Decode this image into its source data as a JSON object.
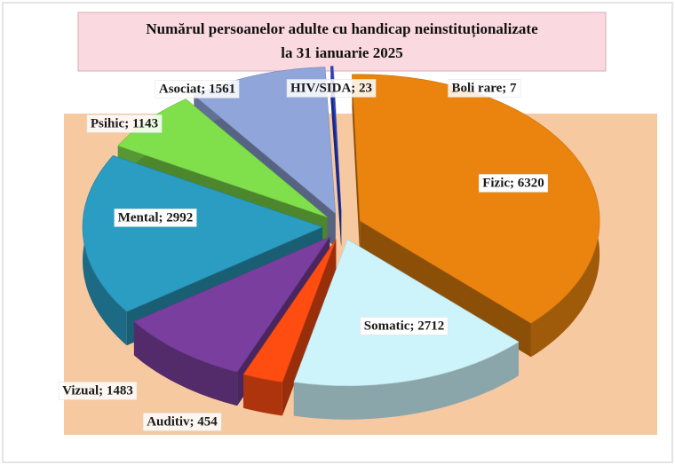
{
  "chart_data": {
    "type": "pie3d",
    "title": [
      "Numărul persoanelor adulte cu handicap neinstituționalizate",
      "la  31 ianuarie 2025"
    ],
    "categories": [
      "Boli rare",
      "Fizic",
      "Somatic",
      "Auditiv",
      "Vizual",
      "Mental",
      "Psihic",
      "Asociat",
      "HIV/SIDA"
    ],
    "values": [
      7,
      6320,
      2712,
      454,
      1483,
      2992,
      1143,
      1561,
      23
    ],
    "value_labels": [
      "Boli rare; 7",
      "Fizic; 6320",
      "Somatic; 2712",
      "Auditiv; 454",
      "Vizual; 1483",
      "Mental; 2992",
      "Psihic; 1143",
      "Asociat; 1561",
      "HIV/SIDA; 23"
    ],
    "colors": [
      "#bdbdbd",
      "#ea840e",
      "#cdf4fb",
      "#ff4d12",
      "#7a3f9e",
      "#2b9cc2",
      "#7fe04b",
      "#90a5d9",
      "#2a3fd0"
    ]
  }
}
